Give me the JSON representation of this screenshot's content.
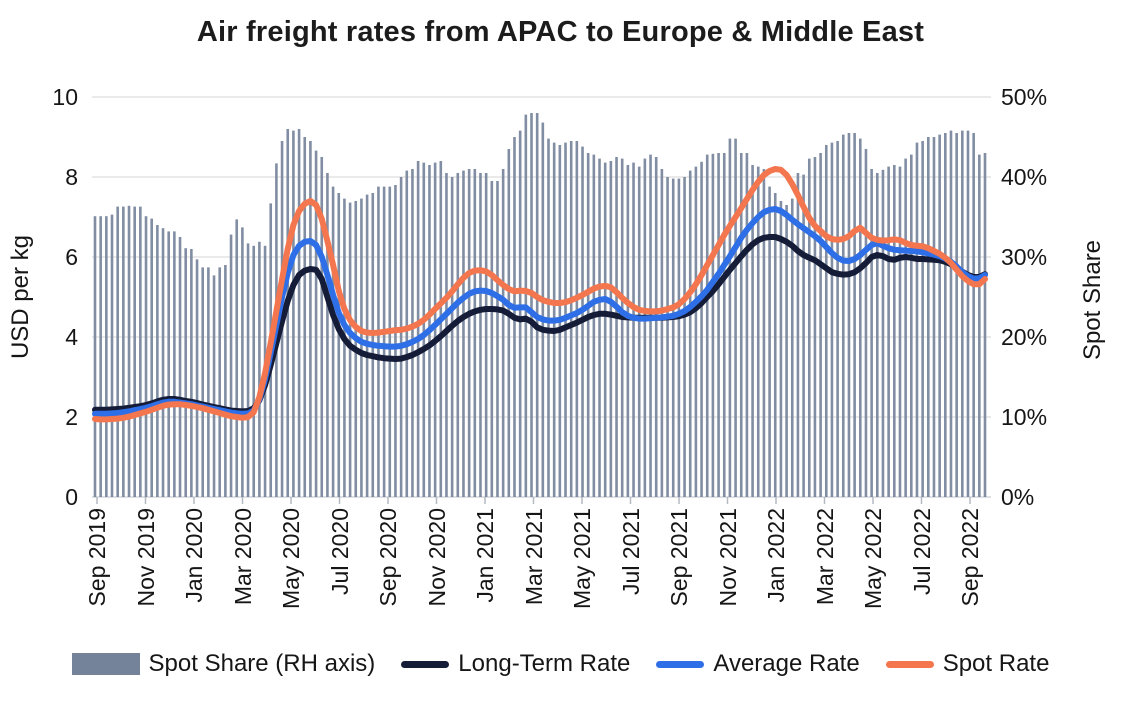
{
  "title": "Air freight rates from APAC to Europe & Middle East",
  "axes": {
    "left": {
      "label": "USD per kg",
      "ticks": [
        "10",
        "8",
        "6",
        "4",
        "2",
        "0"
      ],
      "range": [
        0,
        10
      ]
    },
    "right": {
      "label": "Spot Share",
      "ticks": [
        "50%",
        "40%",
        "30%",
        "20%",
        "10%",
        "0%"
      ],
      "range_pct": [
        0,
        50
      ]
    },
    "x": {
      "ticks": [
        "Sep 2019",
        "Nov 2019",
        "Jan 2020",
        "Mar 2020",
        "May 2020",
        "Jul 2020",
        "Sep 2020",
        "Nov 2020",
        "Jan 2021",
        "Mar 2021",
        "May 2021",
        "Jul 2021",
        "Sep 2021",
        "Nov 2021",
        "Jan 2022",
        "Mar 2022",
        "May 2022",
        "Jul 2022",
        "Sep 2022"
      ]
    }
  },
  "legend": {
    "items": [
      {
        "label": "Spot Share (RH axis)",
        "type": "bar",
        "color": "#75839A"
      },
      {
        "label": "Long-Term Rate",
        "type": "line",
        "color": "#151C38"
      },
      {
        "label": "Average Rate",
        "type": "line",
        "color": "#2E6FE8"
      },
      {
        "label": "Spot Rate",
        "type": "line",
        "color": "#F4764E"
      }
    ]
  },
  "colors": {
    "bar": "#75839A",
    "long_term": "#151C38",
    "average": "#2E6FE8",
    "spot": "#F4764E",
    "gridline": "#DEDEDE",
    "baseline": "#C9CDD4",
    "tick_mark": "#B4BAC2",
    "text": "#161616"
  },
  "chart_data": {
    "type": "combo: weekly vertical bars (right axis, Spot Share %) with 3 line series (left axis, USD per kg)",
    "x_unit": "weekly observations from Sep 2019 to Sep 2022",
    "x_tick_labels": [
      "Sep 2019",
      "Nov 2019",
      "Jan 2020",
      "Mar 2020",
      "May 2020",
      "Jul 2020",
      "Sep 2020",
      "Nov 2020",
      "Jan 2021",
      "Mar 2021",
      "May 2021",
      "Jul 2021",
      "Sep 2021",
      "Nov 2021",
      "Jan 2022",
      "Mar 2022",
      "May 2022",
      "Jul 2022",
      "Sep 2022"
    ],
    "ylabel_left": "USD per kg",
    "ylabel_right": "Spot Share",
    "ylim_left": [
      0,
      10
    ],
    "ylim_right_pct": [
      0,
      50
    ],
    "grid": "horizontal gridlines at 2,4,6,8,10",
    "legend_position": "bottom",
    "bars": {
      "name": "Spot Share (RH axis)",
      "axis": "right",
      "unit": "%",
      "values": [
        35.1,
        35.1,
        35.1,
        35.3,
        36.3,
        36.3,
        36.4,
        36.3,
        36.3,
        35.1,
        34.8,
        34.0,
        33.6,
        33.2,
        33.2,
        32.5,
        31.1,
        31.0,
        29.7,
        28.7,
        28.7,
        27.7,
        28.7,
        29.0,
        32.8,
        34.7,
        33.7,
        31.7,
        31.4,
        31.9,
        31.4,
        36.7,
        41.7,
        44.5,
        46.0,
        45.8,
        46.0,
        45.0,
        44.5,
        43.3,
        42.5,
        40.5,
        38.8,
        38.0,
        37.3,
        36.8,
        37.0,
        37.3,
        37.8,
        38.0,
        38.8,
        38.8,
        38.8,
        39.0,
        40.0,
        40.8,
        41.0,
        42.0,
        41.8,
        41.5,
        41.8,
        42.0,
        40.5,
        40.0,
        40.5,
        40.8,
        41.0,
        41.0,
        40.5,
        40.5,
        39.5,
        39.5,
        41.0,
        43.5,
        45.0,
        45.8,
        47.8,
        48.0,
        48.0,
        46.8,
        44.8,
        44.3,
        44.0,
        44.3,
        44.5,
        44.5,
        43.8,
        43.0,
        42.8,
        42.3,
        41.8,
        42.0,
        42.5,
        42.3,
        41.5,
        41.8,
        41.3,
        42.3,
        42.8,
        42.5,
        41.0,
        40.0,
        39.8,
        39.8,
        40.0,
        40.8,
        41.3,
        41.9,
        42.8,
        42.9,
        43.0,
        43.0,
        44.8,
        44.8,
        43.0,
        43.0,
        41.5,
        41.3,
        41.0,
        38.8,
        38.0,
        37.0,
        36.5,
        37.3,
        40.5,
        40.3,
        42.3,
        42.5,
        43.0,
        44.0,
        44.3,
        44.5,
        45.3,
        45.5,
        45.5,
        44.8,
        43.5,
        41.0,
        40.5,
        40.9,
        41.3,
        41.5,
        41.3,
        42.3,
        42.8,
        44.3,
        44.5,
        45.0,
        45.0,
        45.3,
        45.5,
        45.8,
        45.5,
        45.8,
        45.8,
        45.5,
        42.8,
        43.0
      ]
    },
    "series": [
      {
        "name": "Long-Term Rate",
        "axis": "left",
        "unit": "USD/kg",
        "values": [
          2.18,
          2.18,
          2.18,
          2.19,
          2.2,
          2.21,
          2.23,
          2.25,
          2.27,
          2.3,
          2.34,
          2.39,
          2.43,
          2.45,
          2.45,
          2.43,
          2.4,
          2.38,
          2.35,
          2.31,
          2.28,
          2.25,
          2.22,
          2.19,
          2.16,
          2.15,
          2.14,
          2.15,
          2.22,
          2.42,
          2.8,
          3.3,
          3.85,
          4.4,
          4.9,
          5.3,
          5.55,
          5.66,
          5.7,
          5.68,
          5.45,
          5.0,
          4.55,
          4.2,
          3.95,
          3.78,
          3.68,
          3.6,
          3.55,
          3.52,
          3.49,
          3.47,
          3.46,
          3.45,
          3.46,
          3.5,
          3.55,
          3.62,
          3.7,
          3.79,
          3.9,
          4.02,
          4.15,
          4.28,
          4.4,
          4.5,
          4.58,
          4.64,
          4.68,
          4.7,
          4.7,
          4.69,
          4.66,
          4.58,
          4.48,
          4.44,
          4.46,
          4.38,
          4.24,
          4.18,
          4.16,
          4.15,
          4.18,
          4.24,
          4.3,
          4.36,
          4.43,
          4.5,
          4.55,
          4.58,
          4.58,
          4.56,
          4.53,
          4.5,
          4.49,
          4.48,
          4.48,
          4.48,
          4.48,
          4.48,
          4.48,
          4.49,
          4.5,
          4.52,
          4.56,
          4.62,
          4.72,
          4.85,
          5.0,
          5.15,
          5.32,
          5.5,
          5.68,
          5.85,
          6.02,
          6.18,
          6.32,
          6.42,
          6.48,
          6.5,
          6.5,
          6.45,
          6.38,
          6.28,
          6.15,
          6.05,
          5.98,
          5.92,
          5.82,
          5.72,
          5.62,
          5.58,
          5.56,
          5.57,
          5.62,
          5.72,
          5.85,
          6.0,
          6.05,
          6.02,
          5.95,
          5.93,
          5.98,
          6.0,
          5.98,
          5.95,
          5.95,
          5.94,
          5.93,
          5.92,
          5.88,
          5.82,
          5.73,
          5.63,
          5.55,
          5.5,
          5.5,
          5.57
        ]
      },
      {
        "name": "Average Rate",
        "axis": "left",
        "unit": "USD/kg",
        "values": [
          2.08,
          2.08,
          2.08,
          2.09,
          2.1,
          2.12,
          2.14,
          2.17,
          2.2,
          2.23,
          2.27,
          2.32,
          2.36,
          2.38,
          2.38,
          2.36,
          2.34,
          2.32,
          2.29,
          2.26,
          2.23,
          2.2,
          2.17,
          2.14,
          2.11,
          2.09,
          2.08,
          2.09,
          2.16,
          2.45,
          2.95,
          3.6,
          4.3,
          5.0,
          5.6,
          6.05,
          6.28,
          6.38,
          6.4,
          6.3,
          6.0,
          5.55,
          5.05,
          4.6,
          4.3,
          4.1,
          3.97,
          3.88,
          3.83,
          3.8,
          3.78,
          3.77,
          3.76,
          3.76,
          3.78,
          3.82,
          3.88,
          3.95,
          4.05,
          4.17,
          4.3,
          4.44,
          4.58,
          4.72,
          4.86,
          4.98,
          5.08,
          5.14,
          5.16,
          5.15,
          5.1,
          5.02,
          4.93,
          4.8,
          4.73,
          4.74,
          4.74,
          4.62,
          4.5,
          4.44,
          4.41,
          4.41,
          4.43,
          4.48,
          4.54,
          4.6,
          4.68,
          4.78,
          4.88,
          4.93,
          4.95,
          4.88,
          4.76,
          4.62,
          4.53,
          4.48,
          4.46,
          4.46,
          4.47,
          4.48,
          4.49,
          4.51,
          4.53,
          4.58,
          4.65,
          4.75,
          4.88,
          5.02,
          5.18,
          5.38,
          5.58,
          5.8,
          6.02,
          6.25,
          6.48,
          6.68,
          6.85,
          7.0,
          7.12,
          7.18,
          7.2,
          7.15,
          7.05,
          6.93,
          6.82,
          6.72,
          6.62,
          6.52,
          6.4,
          6.25,
          6.1,
          5.98,
          5.91,
          5.9,
          5.95,
          6.05,
          6.18,
          6.3,
          6.35,
          6.28,
          6.22,
          6.18,
          6.17,
          6.16,
          6.15,
          6.14,
          6.12,
          6.09,
          6.06,
          6.02,
          5.96,
          5.88,
          5.76,
          5.62,
          5.52,
          5.46,
          5.47,
          5.55
        ]
      },
      {
        "name": "Spot Rate",
        "axis": "left",
        "unit": "USD/kg",
        "values": [
          1.95,
          1.94,
          1.94,
          1.95,
          1.96,
          1.98,
          2.01,
          2.05,
          2.09,
          2.13,
          2.18,
          2.23,
          2.28,
          2.31,
          2.32,
          2.32,
          2.3,
          2.28,
          2.25,
          2.22,
          2.18,
          2.14,
          2.1,
          2.06,
          2.02,
          2.0,
          1.98,
          2.0,
          2.12,
          2.5,
          3.1,
          3.85,
          4.65,
          5.45,
          6.2,
          6.8,
          7.15,
          7.33,
          7.4,
          7.3,
          6.95,
          6.4,
          5.8,
          5.15,
          4.7,
          4.42,
          4.25,
          4.15,
          4.11,
          4.1,
          4.11,
          4.13,
          4.15,
          4.17,
          4.18,
          4.21,
          4.26,
          4.33,
          4.43,
          4.56,
          4.7,
          4.84,
          4.98,
          5.14,
          5.32,
          5.48,
          5.6,
          5.66,
          5.67,
          5.64,
          5.55,
          5.42,
          5.3,
          5.2,
          5.14,
          5.16,
          5.15,
          5.1,
          5.0,
          4.92,
          4.88,
          4.85,
          4.85,
          4.87,
          4.92,
          4.98,
          5.05,
          5.13,
          5.21,
          5.26,
          5.28,
          5.24,
          5.12,
          4.98,
          4.85,
          4.75,
          4.68,
          4.65,
          4.64,
          4.64,
          4.66,
          4.7,
          4.74,
          4.82,
          4.95,
          5.12,
          5.32,
          5.55,
          5.8,
          6.05,
          6.3,
          6.55,
          6.78,
          7.0,
          7.22,
          7.45,
          7.68,
          7.88,
          8.05,
          8.15,
          8.2,
          8.18,
          8.05,
          7.82,
          7.55,
          7.25,
          6.98,
          6.78,
          6.65,
          6.52,
          6.45,
          6.43,
          6.45,
          6.52,
          6.65,
          6.73,
          6.6,
          6.48,
          6.43,
          6.41,
          6.42,
          6.44,
          6.42,
          6.35,
          6.3,
          6.28,
          6.27,
          6.22,
          6.15,
          6.08,
          5.98,
          5.85,
          5.68,
          5.52,
          5.4,
          5.32,
          5.32,
          5.45
        ]
      }
    ]
  }
}
